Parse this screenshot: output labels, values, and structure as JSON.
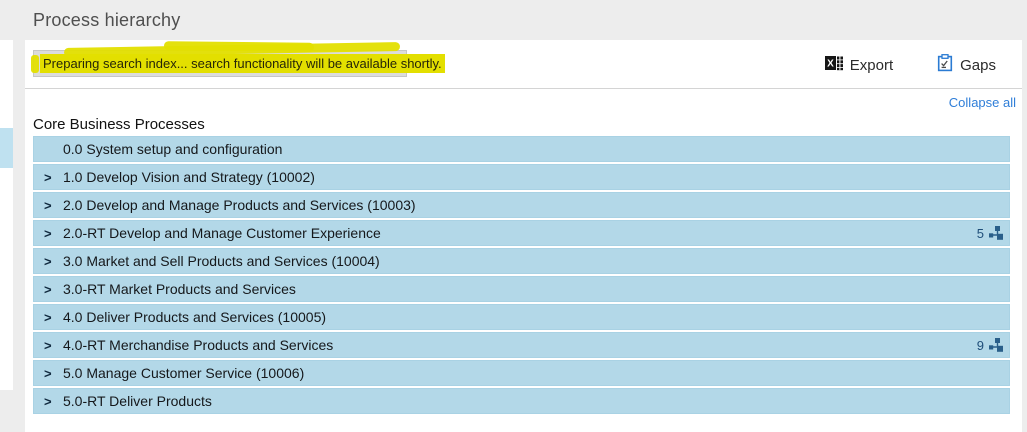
{
  "page": {
    "title": "Process hierarchy"
  },
  "notification": {
    "message": "Preparing search index... search functionality will be available shortly."
  },
  "toolbar": {
    "export_label": "Export",
    "gaps_label": "Gaps"
  },
  "tree": {
    "collapse_all_label": "Collapse all",
    "heading": "Core Business Processes",
    "rows": [
      {
        "label": "0.0 System setup and configuration",
        "has_chevron": false,
        "count": null
      },
      {
        "label": "1.0 Develop Vision and Strategy (10002)",
        "has_chevron": true,
        "count": null
      },
      {
        "label": "2.0 Develop and Manage Products and Services (10003)",
        "has_chevron": true,
        "count": null
      },
      {
        "label": "2.0-RT Develop and Manage Customer Experience",
        "has_chevron": true,
        "count": "5"
      },
      {
        "label": "3.0 Market and Sell Products and Services (10004)",
        "has_chevron": true,
        "count": null
      },
      {
        "label": "3.0-RT Market Products and Services",
        "has_chevron": true,
        "count": null
      },
      {
        "label": "4.0 Deliver Products and Services (10005)",
        "has_chevron": true,
        "count": null
      },
      {
        "label": "4.0-RT Merchandise Products and Services",
        "has_chevron": true,
        "count": "9"
      },
      {
        "label": "5.0 Manage Customer Service (10006)",
        "has_chevron": true,
        "count": null
      },
      {
        "label": "5.0-RT Deliver Products",
        "has_chevron": true,
        "count": null
      }
    ]
  },
  "icons": {
    "export": "excel-icon",
    "gaps": "clipboard-check-icon",
    "row_expand": "chevron-right-icon",
    "row_badge": "hierarchy-icon"
  },
  "colors": {
    "row_background": "#b3d8e8",
    "link_blue": "#2f7ed8",
    "badge_blue": "#1f4e79",
    "hierarchy_icon_blue": "#2a5f8a",
    "highlight_yellow": "#e3df00",
    "notification_gray": "#dcdcdc",
    "page_background": "#ededed"
  }
}
